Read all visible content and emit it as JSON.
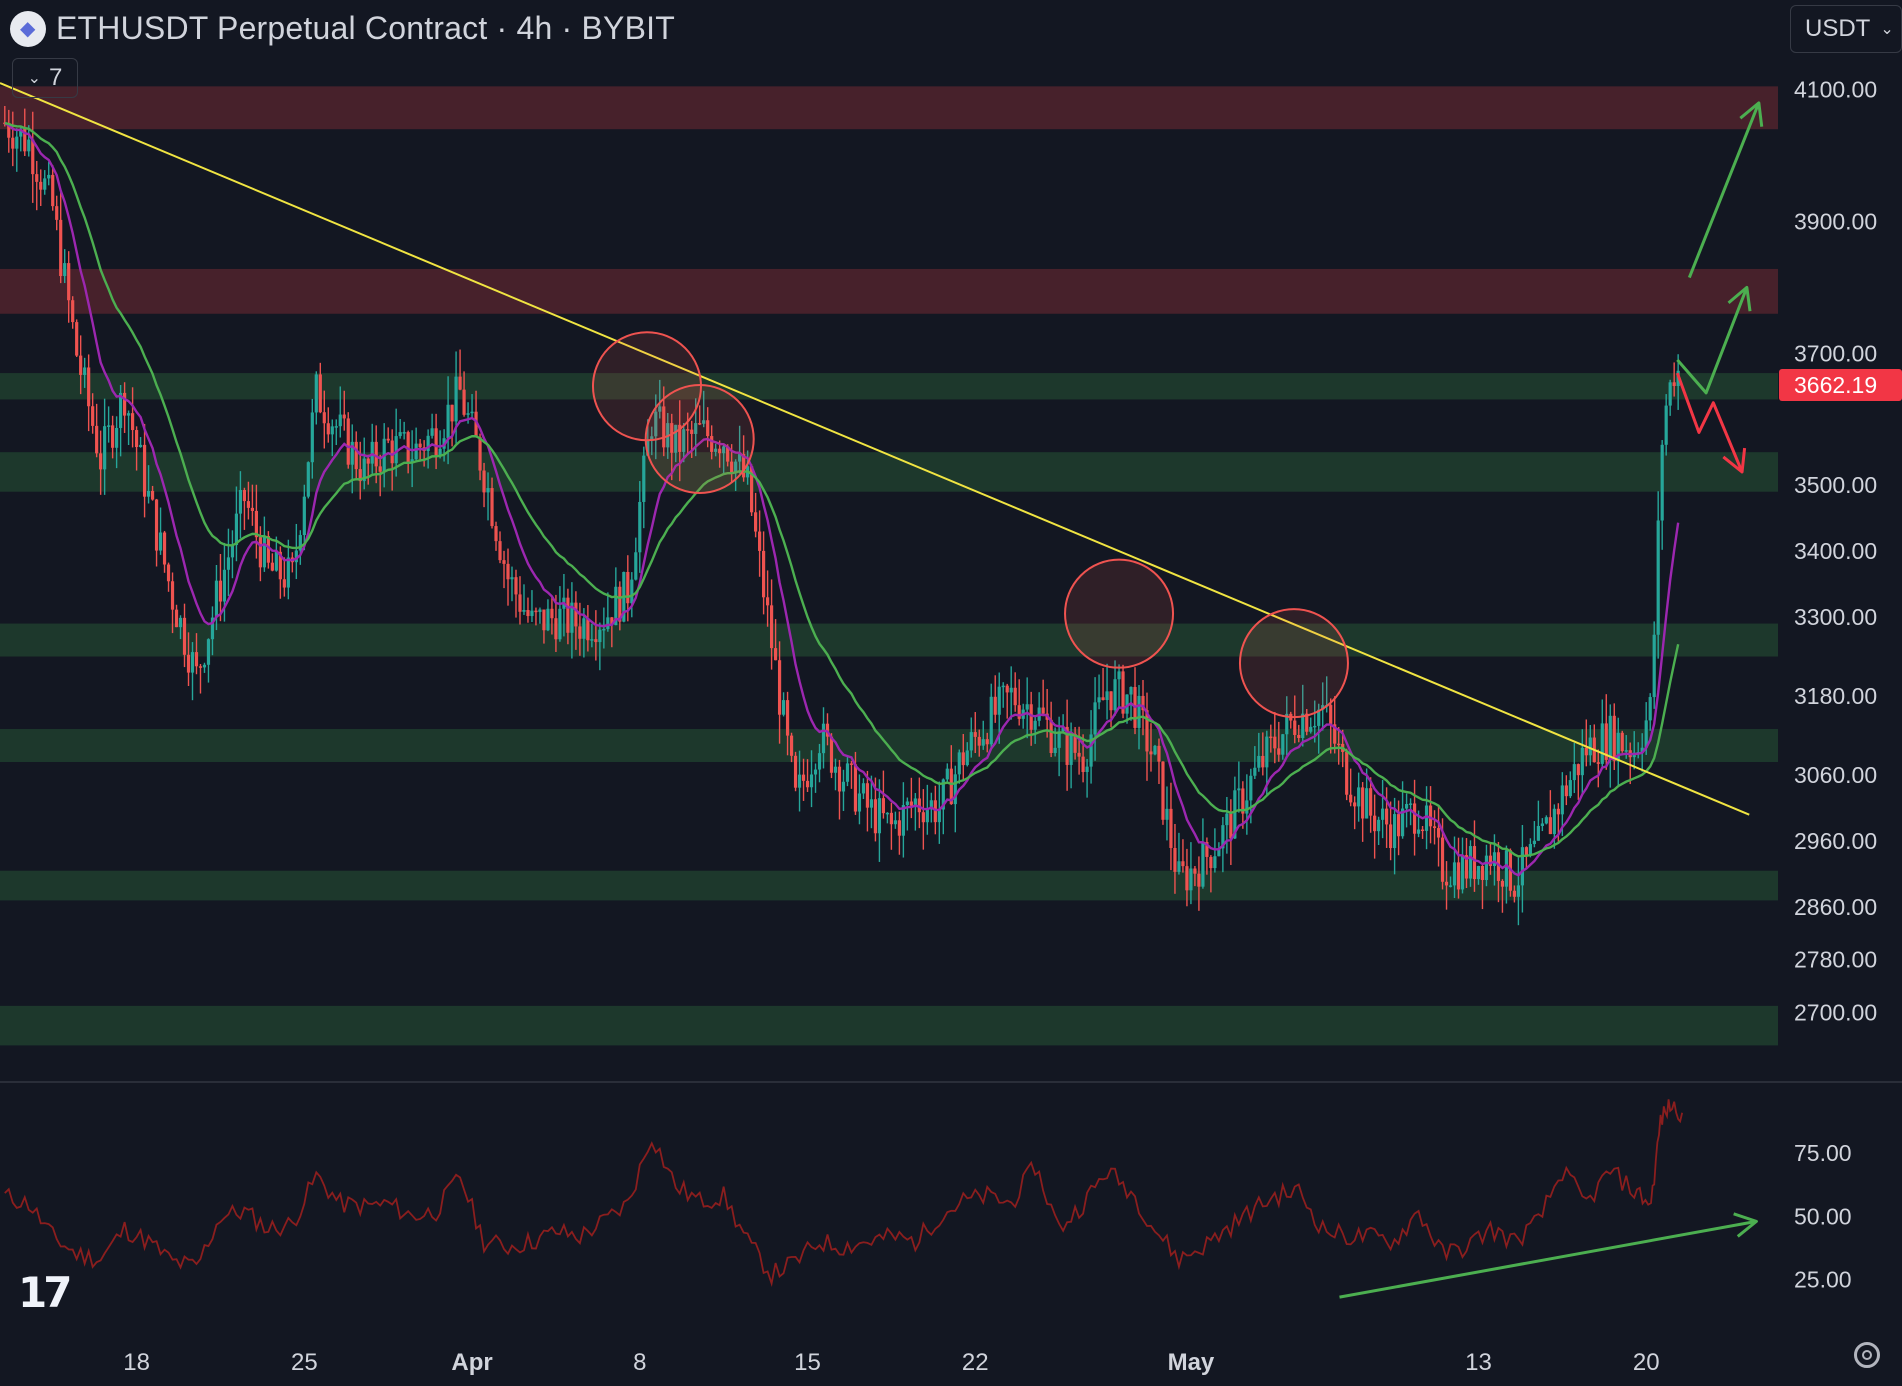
{
  "header": {
    "title": "ETHUSDT Perpetual Contract · 4h · BYBIT",
    "indicator_count": "7",
    "currency": "USDT"
  },
  "icons": {
    "symbol": "ethereum-logo-icon",
    "toggle": "chevron-down-icon",
    "currency_dropdown": "chevron-down-icon",
    "logo": "tradingview-logo-icon",
    "settings": "gear-icon"
  },
  "colors": {
    "background": "#131722",
    "resistance_zone": "#4a222c",
    "support_zone": "#1d3a2d",
    "trendline": "#f0e442",
    "candle_up": "#26a69a",
    "candle_down": "#ef5350",
    "ma_fast": "#9c27b0",
    "ma_slow": "#4caf50",
    "rsi": "#8b1e1e",
    "arrow_up": "#4caf50",
    "arrow_down": "#f23645",
    "last_price_bg": "#f23645"
  },
  "chart_data": {
    "type": "candlestick",
    "symbol": "ETHUSDT",
    "interval": "4h",
    "exchange": "BYBIT",
    "last_price": "3662.19",
    "ylim": [
      2640,
      4145
    ],
    "price_ticks": [
      "4100.00",
      "3900.00",
      "3700.00",
      "3500.00",
      "3400.00",
      "3300.00",
      "3180.00",
      "3060.00",
      "2960.00",
      "2860.00",
      "2780.00",
      "2700.00"
    ],
    "price_tick_values": [
      4100,
      3900,
      3700,
      3500,
      3400,
      3300,
      3180,
      3060,
      2960,
      2860,
      2780,
      2700
    ],
    "x_ticks": [
      {
        "label": "18",
        "day": 18,
        "major": false
      },
      {
        "label": "25",
        "day": 25,
        "major": false
      },
      {
        "label": "Apr",
        "day": 32,
        "major": true
      },
      {
        "label": "8",
        "day": 39,
        "major": false
      },
      {
        "label": "15",
        "day": 46,
        "major": false
      },
      {
        "label": "22",
        "day": 53,
        "major": false
      },
      {
        "label": "May",
        "day": 62,
        "major": true
      },
      {
        "label": "13",
        "day": 74,
        "major": false
      },
      {
        "label": "20",
        "day": 81,
        "major": false
      }
    ],
    "xlim": [
      12.3,
      86.5
    ],
    "close_path": [
      [
        12.5,
        4050
      ],
      [
        13.5,
        4020
      ],
      [
        14.5,
        3920
      ],
      [
        15.5,
        3700
      ],
      [
        16.5,
        3540
      ],
      [
        17.5,
        3640
      ],
      [
        18.5,
        3480
      ],
      [
        19.5,
        3330
      ],
      [
        20.5,
        3210
      ],
      [
        21.5,
        3350
      ],
      [
        22.5,
        3480
      ],
      [
        23.5,
        3370
      ],
      [
        24.5,
        3360
      ],
      [
        25.5,
        3640
      ],
      [
        26.5,
        3580
      ],
      [
        27.5,
        3520
      ],
      [
        28.5,
        3560
      ],
      [
        29.5,
        3550
      ],
      [
        30.5,
        3580
      ],
      [
        31.5,
        3640
      ],
      [
        32.5,
        3520
      ],
      [
        33.5,
        3360
      ],
      [
        34.5,
        3290
      ],
      [
        35.5,
        3300
      ],
      [
        36.5,
        3290
      ],
      [
        37.5,
        3300
      ],
      [
        38.5,
        3340
      ],
      [
        39.5,
        3600
      ],
      [
        40.5,
        3560
      ],
      [
        41.5,
        3580
      ],
      [
        42.5,
        3570
      ],
      [
        43.5,
        3500
      ],
      [
        44.5,
        3260
      ],
      [
        45.5,
        3020
      ],
      [
        46.5,
        3120
      ],
      [
        47.5,
        3060
      ],
      [
        48.5,
        3010
      ],
      [
        49.5,
        2980
      ],
      [
        50.5,
        3020
      ],
      [
        51.5,
        3010
      ],
      [
        52.5,
        3090
      ],
      [
        53.5,
        3140
      ],
      [
        54.5,
        3180
      ],
      [
        55.5,
        3160
      ],
      [
        56.5,
        3110
      ],
      [
        57.5,
        3090
      ],
      [
        58.5,
        3190
      ],
      [
        59.5,
        3180
      ],
      [
        60.5,
        3080
      ],
      [
        61.5,
        2900
      ],
      [
        62.5,
        2930
      ],
      [
        63.5,
        2980
      ],
      [
        64.5,
        3050
      ],
      [
        65.5,
        3110
      ],
      [
        66.5,
        3150
      ],
      [
        67.5,
        3160
      ],
      [
        68.5,
        3060
      ],
      [
        69.5,
        3000
      ],
      [
        70.5,
        2980
      ],
      [
        71.5,
        3010
      ],
      [
        72.5,
        2920
      ],
      [
        73.5,
        2920
      ],
      [
        74.5,
        2940
      ],
      [
        75.5,
        2900
      ],
      [
        76.5,
        2950
      ],
      [
        77.5,
        3030
      ],
      [
        78.5,
        3100
      ],
      [
        79.5,
        3120
      ],
      [
        80.5,
        3100
      ],
      [
        81.2,
        3160
      ],
      [
        81.7,
        3600
      ],
      [
        82.2,
        3680
      ],
      [
        82.5,
        3662
      ]
    ],
    "zones": [
      {
        "type": "resistance",
        "low": 4040,
        "high": 4105
      },
      {
        "type": "resistance",
        "low": 3760,
        "high": 3828
      },
      {
        "type": "support",
        "low": 3630,
        "high": 3670
      },
      {
        "type": "support",
        "low": 3490,
        "high": 3550
      },
      {
        "type": "support",
        "low": 3240,
        "high": 3290
      },
      {
        "type": "support",
        "low": 3080,
        "high": 3130
      },
      {
        "type": "support",
        "low": 2870,
        "high": 2915
      },
      {
        "type": "support",
        "low": 2650,
        "high": 2710
      }
    ],
    "trendline": {
      "from": [
        12.3,
        4110
      ],
      "to": [
        85.3,
        3000
      ]
    },
    "rejection_circles": [
      {
        "day": 39.3,
        "price": 3650
      },
      {
        "day": 41.5,
        "price": 3570
      },
      {
        "day": 59.0,
        "price": 3305
      },
      {
        "day": 66.3,
        "price": 3230
      }
    ],
    "projection_arrows": [
      {
        "kind": "bullish",
        "points": [
          [
            82.8,
            3815
          ],
          [
            85.7,
            4080
          ]
        ]
      },
      {
        "kind": "bullish",
        "points": [
          [
            82.3,
            3690
          ],
          [
            83.5,
            3640
          ],
          [
            85.2,
            3800
          ]
        ]
      },
      {
        "kind": "bearish",
        "points": [
          [
            82.3,
            3670
          ],
          [
            83.2,
            3580
          ],
          [
            83.8,
            3625
          ],
          [
            85.0,
            3520
          ]
        ]
      }
    ],
    "rsi": {
      "ticks": [
        "75.00",
        "50.00",
        "25.00"
      ],
      "tick_values": [
        75,
        50,
        25
      ],
      "ylim": [
        5,
        100
      ],
      "path": [
        [
          12.5,
          58
        ],
        [
          13.5,
          55
        ],
        [
          14.5,
          42
        ],
        [
          15.5,
          35
        ],
        [
          16.5,
          33
        ],
        [
          17.5,
          45
        ],
        [
          18.5,
          40
        ],
        [
          19.5,
          32
        ],
        [
          20.5,
          30
        ],
        [
          21.5,
          50
        ],
        [
          22.5,
          52
        ],
        [
          23.5,
          45
        ],
        [
          24.5,
          47
        ],
        [
          25.5,
          66
        ],
        [
          26.5,
          55
        ],
        [
          27.5,
          54
        ],
        [
          28.5,
          55
        ],
        [
          29.5,
          50
        ],
        [
          30.5,
          52
        ],
        [
          31.5,
          66
        ],
        [
          32.5,
          40
        ],
        [
          33.5,
          38
        ],
        [
          34.5,
          40
        ],
        [
          35.5,
          44
        ],
        [
          36.5,
          42
        ],
        [
          37.5,
          48
        ],
        [
          38.5,
          55
        ],
        [
          39.5,
          82
        ],
        [
          40.5,
          62
        ],
        [
          41.5,
          56
        ],
        [
          42.5,
          58
        ],
        [
          43.5,
          40
        ],
        [
          44.5,
          27
        ],
        [
          45.5,
          32
        ],
        [
          46.5,
          40
        ],
        [
          47.5,
          38
        ],
        [
          48.5,
          40
        ],
        [
          49.5,
          42
        ],
        [
          50.5,
          40
        ],
        [
          51.5,
          50
        ],
        [
          52.5,
          56
        ],
        [
          53.5,
          58
        ],
        [
          54.5,
          55
        ],
        [
          55.5,
          70
        ],
        [
          56.5,
          45
        ],
        [
          57.5,
          55
        ],
        [
          58.5,
          68
        ],
        [
          59.5,
          60
        ],
        [
          60.5,
          45
        ],
        [
          61.5,
          33
        ],
        [
          62.5,
          38
        ],
        [
          63.5,
          45
        ],
        [
          64.5,
          52
        ],
        [
          65.5,
          58
        ],
        [
          66.5,
          60
        ],
        [
          67.5,
          45
        ],
        [
          68.5,
          42
        ],
        [
          69.5,
          42
        ],
        [
          70.5,
          40
        ],
        [
          71.5,
          52
        ],
        [
          72.5,
          35
        ],
        [
          73.5,
          38
        ],
        [
          74.5,
          45
        ],
        [
          75.5,
          40
        ],
        [
          76.5,
          48
        ],
        [
          77.5,
          68
        ],
        [
          78.5,
          55
        ],
        [
          79.5,
          68
        ],
        [
          80.5,
          60
        ],
        [
          81.2,
          55
        ],
        [
          81.6,
          88
        ],
        [
          82.0,
          94
        ],
        [
          82.5,
          91
        ]
      ],
      "divergence_arrow": {
        "points": [
          [
            68.2,
            18
          ],
          [
            85.6,
            48
          ]
        ]
      }
    }
  }
}
